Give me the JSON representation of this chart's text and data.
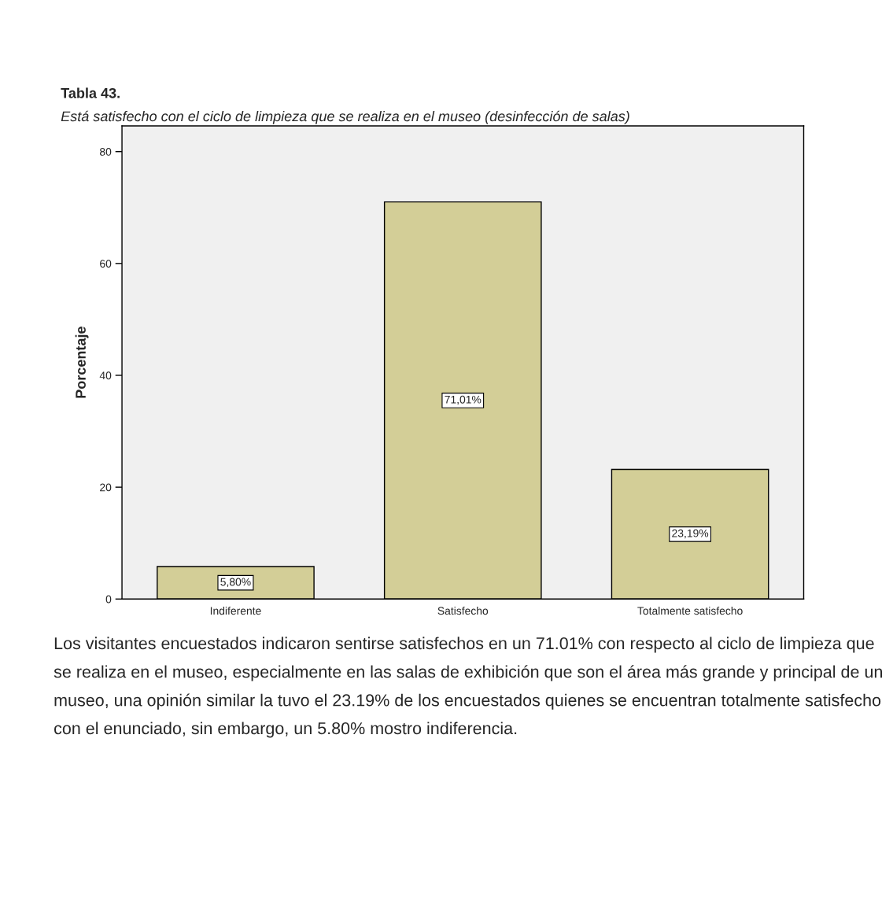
{
  "chart_data": {
    "type": "bar",
    "title": "Tabla 43.",
    "subtitle": "Está satisfecho con el ciclo de limpieza que se realiza en el museo (desinfección de salas)",
    "ylabel": "Porcentaje",
    "categories": [
      "Indiferente",
      "Satisfecho",
      "Totalmente satisfecho"
    ],
    "values": [
      5.8,
      71.01,
      23.19
    ],
    "value_labels": [
      "5,80%",
      "71,01%",
      "23,19%"
    ],
    "color": "#d3ce97",
    "ylim": [
      0,
      84.6
    ],
    "yticks": [
      0,
      20,
      40,
      60,
      80
    ],
    "grid": false,
    "annotations": [
      "Los visitantes encuestados indicaron sentirse satisfechos en un 71.01% con respecto al ciclo de limpieza que se realiza en el museo, especialmente en las salas de exhibición que son el área más grande y principal de un museo, una opinión similar la tuvo el 23.19% de los encuestados quienes se encuentran totalmente satisfecho con el enunciado, sin embargo, un 5.80% mostro indiferencia."
    ]
  }
}
